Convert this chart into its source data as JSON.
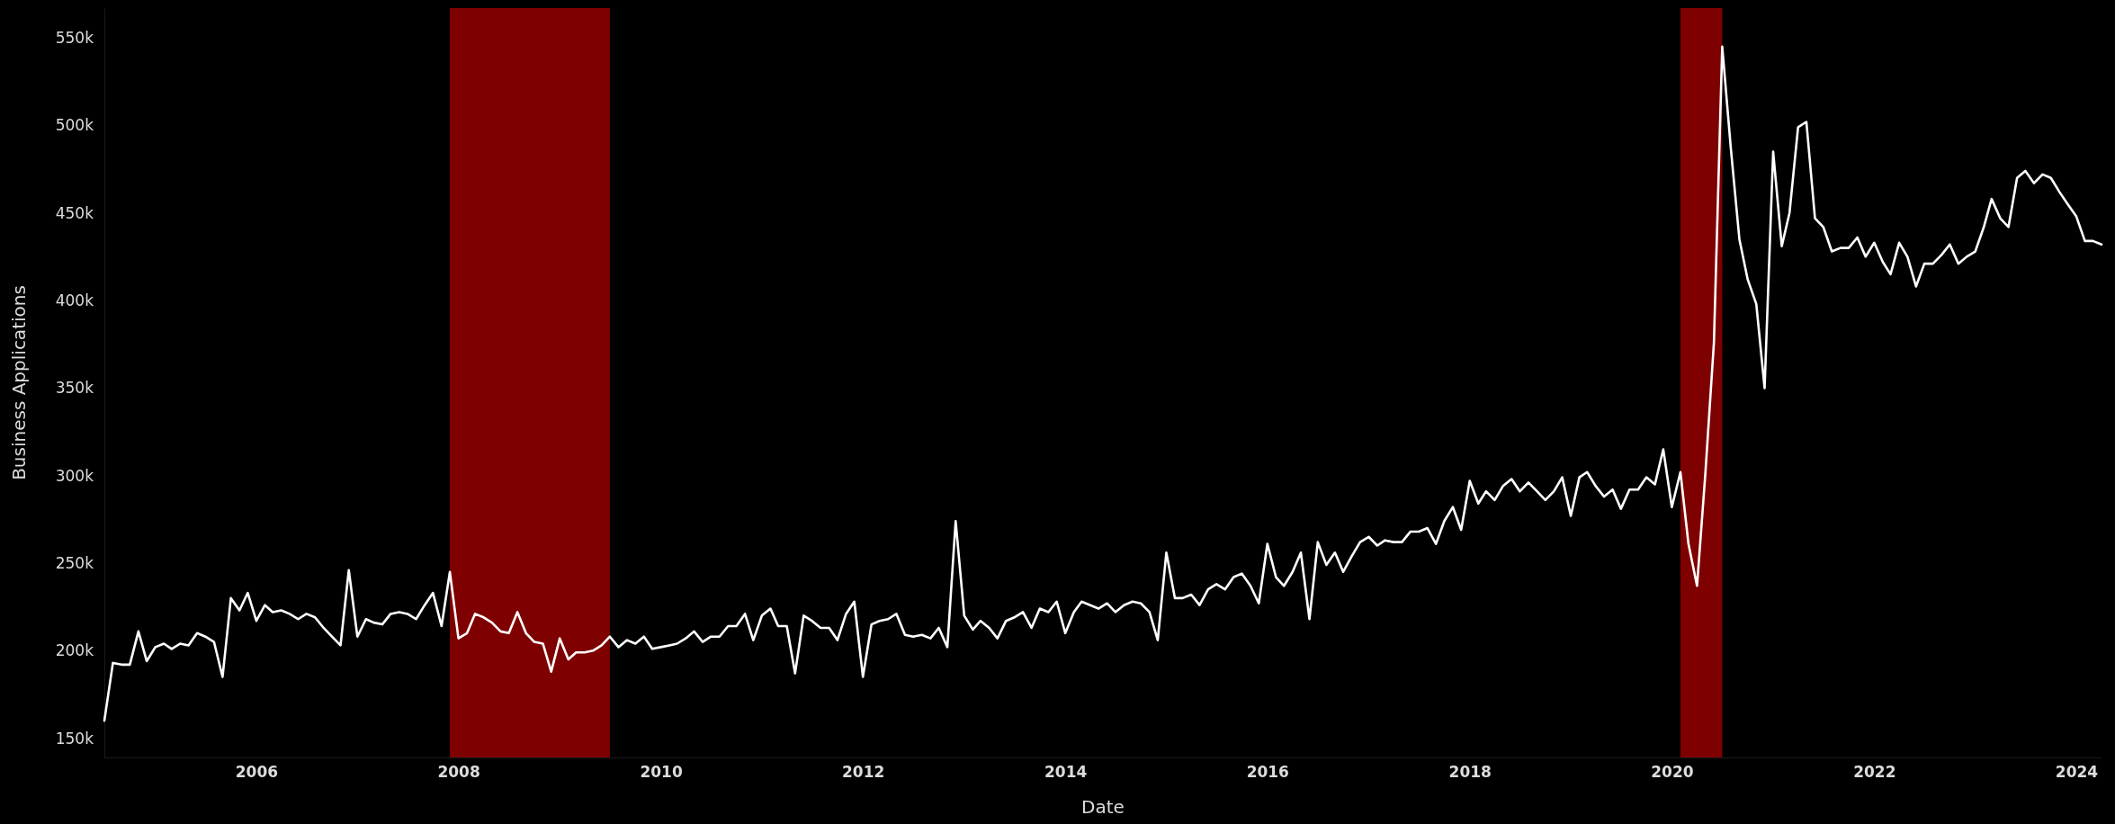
{
  "chart_data": {
    "type": "line",
    "xlabel": "Date",
    "ylabel": "Business Applications",
    "xlim": [
      "2004-07",
      "2024-04"
    ],
    "xticks": [
      "2006",
      "2008",
      "2010",
      "2012",
      "2014",
      "2016",
      "2018",
      "2020",
      "2022",
      "2024"
    ],
    "ylim": [
      139000,
      567000
    ],
    "yticks": [
      {
        "value": 150000,
        "label": "150k"
      },
      {
        "value": 200000,
        "label": "200k"
      },
      {
        "value": 250000,
        "label": "250k"
      },
      {
        "value": 300000,
        "label": "300k"
      },
      {
        "value": 350000,
        "label": "350k"
      },
      {
        "value": 400000,
        "label": "400k"
      },
      {
        "value": 450000,
        "label": "450k"
      },
      {
        "value": 500000,
        "label": "500k"
      },
      {
        "value": 550000,
        "label": "550k"
      }
    ],
    "bands": [
      {
        "axis": "x",
        "from": "2007-12",
        "to": "2009-07",
        "color": "#7f0000"
      },
      {
        "axis": "x",
        "from": "2020-02",
        "to": "2020-07",
        "color": "#7f0000"
      }
    ],
    "x": [
      "2004-07",
      "2004-08",
      "2004-09",
      "2004-10",
      "2004-11",
      "2004-12",
      "2005-01",
      "2005-02",
      "2005-03",
      "2005-04",
      "2005-05",
      "2005-06",
      "2005-07",
      "2005-08",
      "2005-09",
      "2005-10",
      "2005-11",
      "2005-12",
      "2006-01",
      "2006-02",
      "2006-03",
      "2006-04",
      "2006-05",
      "2006-06",
      "2006-07",
      "2006-08",
      "2006-09",
      "2006-10",
      "2006-11",
      "2006-12",
      "2007-01",
      "2007-02",
      "2007-03",
      "2007-04",
      "2007-05",
      "2007-06",
      "2007-07",
      "2007-08",
      "2007-09",
      "2007-10",
      "2007-11",
      "2007-12",
      "2008-01",
      "2008-02",
      "2008-03",
      "2008-04",
      "2008-05",
      "2008-06",
      "2008-07",
      "2008-08",
      "2008-09",
      "2008-10",
      "2008-11",
      "2008-12",
      "2009-01",
      "2009-02",
      "2009-03",
      "2009-04",
      "2009-05",
      "2009-06",
      "2009-07",
      "2009-08",
      "2009-09",
      "2009-10",
      "2009-11",
      "2009-12",
      "2010-01",
      "2010-02",
      "2010-03",
      "2010-04",
      "2010-05",
      "2010-06",
      "2010-07",
      "2010-08",
      "2010-09",
      "2010-10",
      "2010-11",
      "2010-12",
      "2011-01",
      "2011-02",
      "2011-03",
      "2011-04",
      "2011-05",
      "2011-06",
      "2011-07",
      "2011-08",
      "2011-09",
      "2011-10",
      "2011-11",
      "2011-12",
      "2012-01",
      "2012-02",
      "2012-03",
      "2012-04",
      "2012-05",
      "2012-06",
      "2012-07",
      "2012-08",
      "2012-09",
      "2012-10",
      "2012-11",
      "2012-12",
      "2013-01",
      "2013-02",
      "2013-03",
      "2013-04",
      "2013-05",
      "2013-06",
      "2013-07",
      "2013-08",
      "2013-09",
      "2013-10",
      "2013-11",
      "2013-12",
      "2014-01",
      "2014-02",
      "2014-03",
      "2014-04",
      "2014-05",
      "2014-06",
      "2014-07",
      "2014-08",
      "2014-09",
      "2014-10",
      "2014-11",
      "2014-12",
      "2015-01",
      "2015-02",
      "2015-03",
      "2015-04",
      "2015-05",
      "2015-06",
      "2015-07",
      "2015-08",
      "2015-09",
      "2015-10",
      "2015-11",
      "2015-12",
      "2016-01",
      "2016-02",
      "2016-03",
      "2016-04",
      "2016-05",
      "2016-06",
      "2016-07",
      "2016-08",
      "2016-09",
      "2016-10",
      "2016-11",
      "2016-12",
      "2017-01",
      "2017-02",
      "2017-03",
      "2017-04",
      "2017-05",
      "2017-06",
      "2017-07",
      "2017-08",
      "2017-09",
      "2017-10",
      "2017-11",
      "2017-12",
      "2018-01",
      "2018-02",
      "2018-03",
      "2018-04",
      "2018-05",
      "2018-06",
      "2018-07",
      "2018-08",
      "2018-09",
      "2018-10",
      "2018-11",
      "2018-12",
      "2019-01",
      "2019-02",
      "2019-03",
      "2019-04",
      "2019-05",
      "2019-06",
      "2019-07",
      "2019-08",
      "2019-09",
      "2019-10",
      "2019-11",
      "2019-12",
      "2020-01",
      "2020-02",
      "2020-03",
      "2020-04",
      "2020-05",
      "2020-06",
      "2020-07",
      "2020-08",
      "2020-09",
      "2020-10",
      "2020-11",
      "2020-12",
      "2021-01",
      "2021-02",
      "2021-03",
      "2021-04",
      "2021-05",
      "2021-06",
      "2021-07",
      "2021-08",
      "2021-09",
      "2021-10",
      "2021-11",
      "2021-12",
      "2022-01",
      "2022-02",
      "2022-03",
      "2022-04",
      "2022-05",
      "2022-06",
      "2022-07",
      "2022-08",
      "2022-09",
      "2022-10",
      "2022-11",
      "2022-12",
      "2023-01",
      "2023-02",
      "2023-03",
      "2023-04",
      "2023-05",
      "2023-06",
      "2023-07",
      "2023-08",
      "2023-09",
      "2023-10",
      "2023-11",
      "2023-12",
      "2024-01",
      "2024-02",
      "2024-03",
      "2024-04"
    ],
    "series": [
      {
        "color": "#ffffff",
        "values": [
          160000,
          193000,
          192000,
          192000,
          211000,
          194000,
          202000,
          204000,
          201000,
          204000,
          203000,
          210000,
          208000,
          205000,
          185000,
          230000,
          223000,
          233000,
          217000,
          226000,
          222000,
          223000,
          221000,
          218000,
          221000,
          219000,
          213000,
          208000,
          203000,
          246000,
          208000,
          218000,
          216000,
          215000,
          221000,
          222000,
          221000,
          218000,
          226000,
          233000,
          214000,
          245000,
          207000,
          210000,
          221000,
          219000,
          216000,
          211000,
          210000,
          222000,
          210000,
          205000,
          204000,
          188000,
          207000,
          195000,
          199000,
          199000,
          200000,
          203000,
          208000,
          202000,
          206000,
          204000,
          208000,
          201000,
          202000,
          203000,
          204000,
          207000,
          211000,
          205000,
          208000,
          208000,
          214000,
          214000,
          221000,
          206000,
          220000,
          224000,
          214000,
          214000,
          187000,
          220000,
          217000,
          213000,
          213000,
          206000,
          221000,
          228000,
          185000,
          215000,
          217000,
          218000,
          221000,
          209000,
          208000,
          209000,
          207000,
          213000,
          202000,
          274000,
          220000,
          212000,
          217000,
          213000,
          207000,
          217000,
          219000,
          222000,
          213000,
          224000,
          222000,
          228000,
          210000,
          222000,
          228000,
          226000,
          224000,
          227000,
          222000,
          226000,
          228000,
          227000,
          222000,
          206000,
          256000,
          230000,
          230000,
          232000,
          226000,
          235000,
          238000,
          235000,
          242000,
          244000,
          237000,
          227000,
          261000,
          242000,
          237000,
          245000,
          256000,
          218000,
          262000,
          249000,
          256000,
          245000,
          254000,
          262000,
          265000,
          260000,
          263000,
          262000,
          262000,
          268000,
          268000,
          270000,
          261000,
          274000,
          282000,
          269000,
          297000,
          284000,
          291000,
          286000,
          294000,
          298000,
          291000,
          296000,
          291000,
          286000,
          291000,
          299000,
          277000,
          299000,
          302000,
          294000,
          288000,
          292000,
          281000,
          292000,
          292000,
          299000,
          295000,
          315000,
          282000,
          302000,
          261000,
          237000,
          301000,
          376000,
          545000,
          487000,
          435000,
          412000,
          398000,
          350000,
          485000,
          431000,
          450000,
          499000,
          502000,
          447000,
          442000,
          428000,
          430000,
          430000,
          436000,
          425000,
          433000,
          422000,
          415000,
          433000,
          425000,
          408000,
          421000,
          421000,
          426000,
          432000,
          421000,
          425000,
          428000,
          442000,
          458000,
          447000,
          442000,
          470000,
          474000,
          467000,
          472000,
          470000,
          462000,
          455000,
          448000,
          434000,
          434000,
          432000
        ]
      }
    ]
  }
}
